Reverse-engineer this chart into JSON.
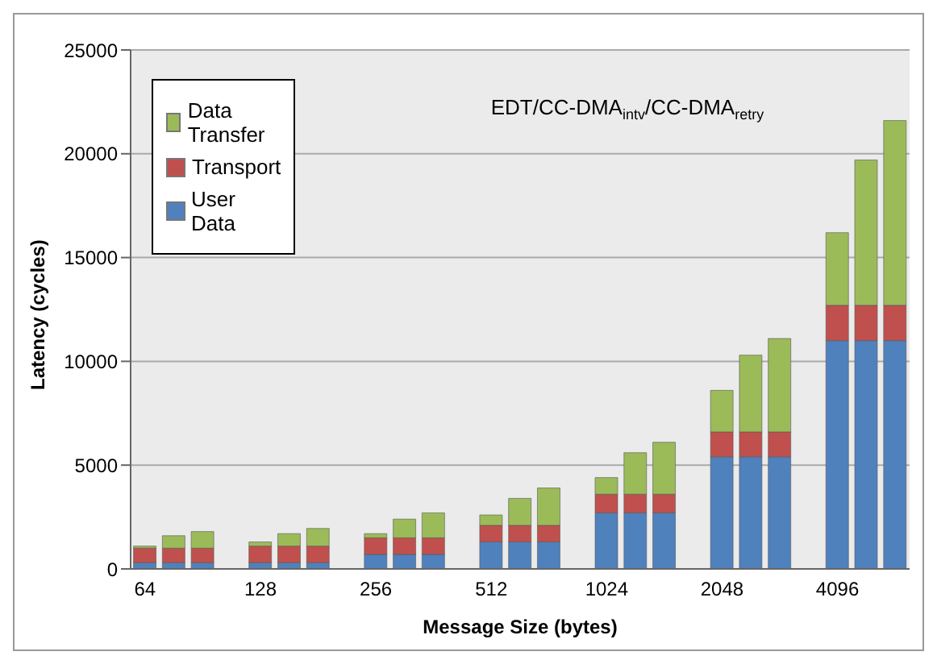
{
  "chart_data": {
    "type": "bar",
    "stacked": true,
    "title": "EDT/CC-DMA$_{intv}$/CC-DMA$_{retry}$",
    "xlabel": "Message Size (bytes)",
    "ylabel": "Latency (cycles)",
    "categories": [
      "64",
      null,
      null,
      null,
      "128",
      null,
      null,
      null,
      "256",
      null,
      null,
      null,
      "512",
      null,
      null,
      null,
      "1024",
      null,
      null,
      null,
      "2048",
      null,
      null,
      null,
      "4096",
      null,
      null
    ],
    "series": [
      {
        "name": "User Data",
        "color": "#4f81bd",
        "values": [
          300,
          300,
          300,
          null,
          300,
          300,
          300,
          null,
          700,
          700,
          700,
          null,
          1300,
          1300,
          1300,
          null,
          2700,
          2700,
          2700,
          null,
          5400,
          5400,
          5400,
          null,
          11000,
          11000,
          11000
        ]
      },
      {
        "name": "Transport",
        "color": "#c0504d",
        "values": [
          700,
          700,
          700,
          null,
          800,
          800,
          800,
          null,
          800,
          800,
          800,
          null,
          800,
          800,
          800,
          null,
          900,
          900,
          900,
          null,
          1200,
          1200,
          1200,
          null,
          1700,
          1700,
          1700
        ]
      },
      {
        "name": "Data Transfer",
        "color": "#9bbb59",
        "values": [
          100,
          600,
          800,
          null,
          200,
          600,
          850,
          null,
          200,
          900,
          1200,
          null,
          500,
          1300,
          1800,
          null,
          800,
          2000,
          2500,
          null,
          2000,
          3700,
          4500,
          null,
          3500,
          7000,
          8900
        ]
      }
    ],
    "ylim": [
      0,
      25000
    ],
    "yticks": [
      0,
      5000,
      10000,
      15000,
      20000,
      25000
    ],
    "grid": "y",
    "legend": "top left"
  }
}
